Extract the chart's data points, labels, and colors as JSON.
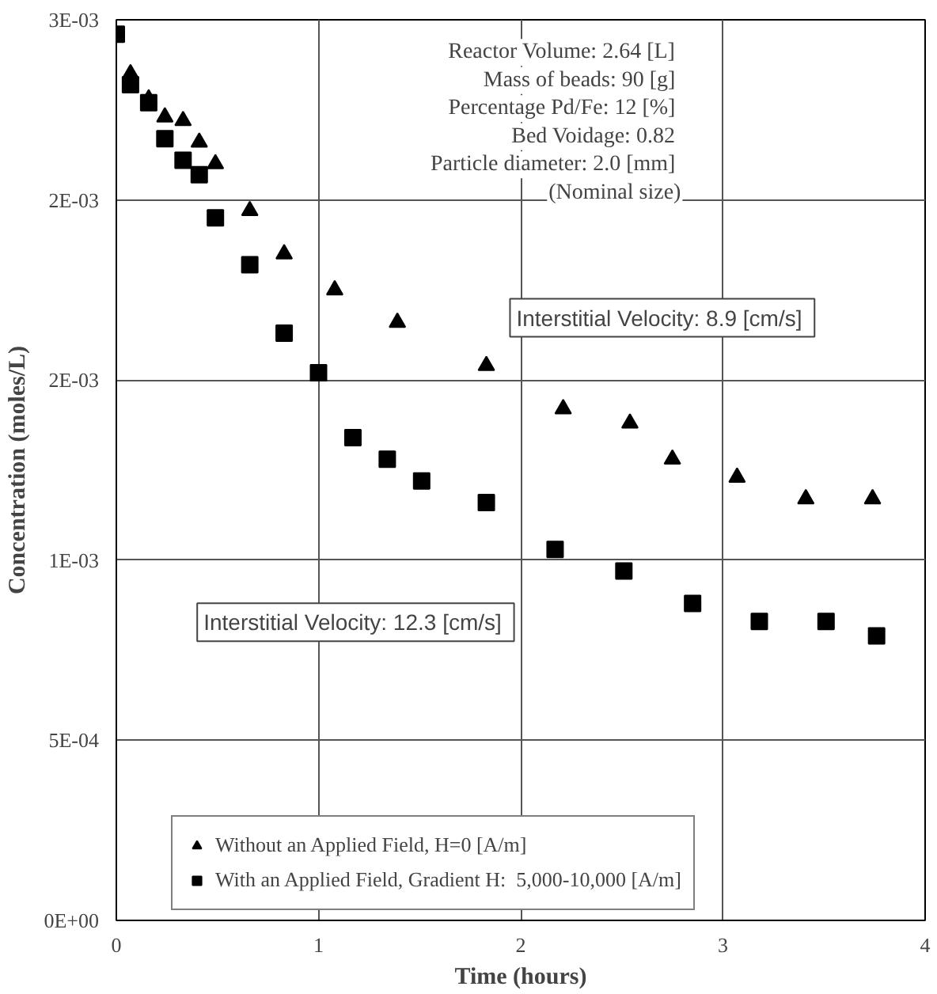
{
  "chart_data": {
    "type": "scatter",
    "xlabel": "Time (hours)",
    "ylabel": "Concentration (moles/L)",
    "xlim": [
      0,
      4
    ],
    "xticks": [
      0,
      1,
      2,
      3,
      4
    ],
    "ylim": [
      0,
      0.0025
    ],
    "yticks": [
      {
        "value": 0,
        "label": "0E+00"
      },
      {
        "value": 0.0005,
        "label": "5E-04"
      },
      {
        "value": 0.001,
        "label": "1E-03"
      },
      {
        "value": 0.0015,
        "label": "2E-03"
      },
      {
        "value": 0.002,
        "label": "2E-03"
      },
      {
        "value": 0.0025,
        "label": "3E-03"
      }
    ],
    "grid": true,
    "legend": "bottom",
    "series": [
      {
        "name": "Without an Applied Field, H=0 [A/m]",
        "color": "#000000",
        "marker": "triangle",
        "x": [
          0.07,
          0.16,
          0.24,
          0.33,
          0.41,
          0.49,
          0.66,
          0.83,
          1.08,
          1.39,
          1.83,
          2.21,
          2.54,
          2.75,
          3.07,
          3.41,
          3.74
        ],
        "values": [
          0.00235,
          0.00228,
          0.00223,
          0.00222,
          0.00216,
          0.0021,
          0.00197,
          0.00185,
          0.00175,
          0.00166,
          0.00154,
          0.00142,
          0.00138,
          0.00128,
          0.00123,
          0.00117,
          0.00117
        ]
      },
      {
        "name": "With an Applied Field, Gradient H:  5,000-10,000 [A/m]",
        "color": "#000000",
        "marker": "square",
        "x": [
          0,
          0.07,
          0.16,
          0.24,
          0.33,
          0.41,
          0.49,
          0.66,
          0.83,
          1.0,
          1.17,
          1.34,
          1.51,
          1.83,
          2.17,
          2.51,
          2.85,
          3.18,
          3.51,
          3.76
        ],
        "values": [
          0.00246,
          0.00232,
          0.00227,
          0.00217,
          0.00211,
          0.00207,
          0.00195,
          0.00182,
          0.00163,
          0.00152,
          0.00134,
          0.00128,
          0.00122,
          0.00116,
          0.00103,
          0.00097,
          0.00088,
          0.00083,
          0.00083,
          0.00079
        ]
      }
    ],
    "annotations": [
      "Reactor Volume:  2.64 [L]",
      "Mass of beads:  90 [g]",
      "Percentage Pd/Fe:  12 [%]",
      "Bed Voidage:  0.82",
      "Particle diameter:  2.0 [mm]",
      "(Nominal size)",
      "Interstitial Velocity:  8.9 [cm/s]",
      "Interstitial Velocity:  12.3 [cm/s]"
    ]
  }
}
